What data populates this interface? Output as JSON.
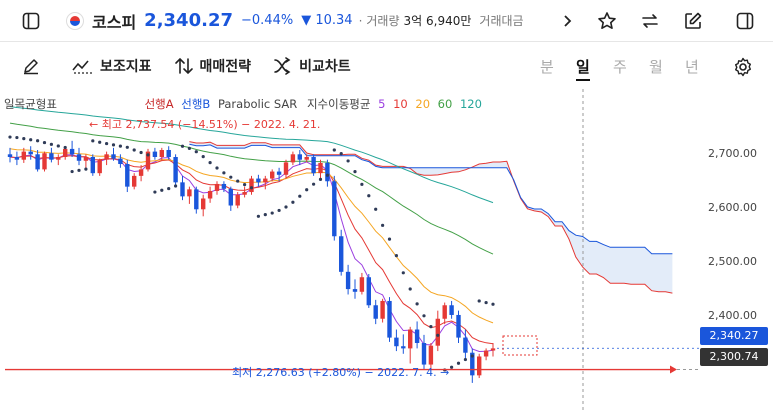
{
  "header": {
    "name": "코스피",
    "price": "2,340.27",
    "change_pct": "−0.44%",
    "change_abs": "▼ 10.34",
    "dot": "·",
    "volume_label": "거래량",
    "volume_value": "3억 6,940만",
    "amount_label": "거래대금"
  },
  "toolbar": {
    "indicators_label": "보조지표",
    "strategy_label": "매매전략",
    "compare_label": "비교차트",
    "periods": [
      "분",
      "일",
      "주",
      "월",
      "년"
    ],
    "active_period": "일"
  },
  "legend": {
    "ichimoku": "일목균형표",
    "span_a": "선행A",
    "span_b": "선행B",
    "psar": "Parabolic SAR",
    "ema": "지수이동평균",
    "ema_periods": [
      "5",
      "10",
      "20",
      "60",
      "120"
    ],
    "ema_colors": [
      "#9b3fe0",
      "#e53935",
      "#f5a623",
      "#43a047",
      "#26a69a"
    ]
  },
  "annotations": {
    "high": "← 최고 2,737.54 (−14.51%) − 2022. 4. 21.",
    "low": "최저 2,276.63 (+2.80%) − 2022. 7. 4. →"
  },
  "price_tags": {
    "current": "2,340.27",
    "line": "2,300.74"
  },
  "colors": {
    "up": "#e53935",
    "down": "#1a56db",
    "cloud_fill": "#dce7f7"
  },
  "chart_data": {
    "type": "candlestick",
    "y_ticks": [
      "2,700.00",
      "2,600.00",
      "2,500.00",
      "2,400.00"
    ],
    "y_tick_values": [
      2700,
      2600,
      2500,
      2400
    ],
    "ylim": [
      2235,
      2810
    ],
    "candles": [
      [
        2700,
        2712,
        2685,
        2695
      ],
      [
        2695,
        2705,
        2680,
        2690
      ],
      [
        2690,
        2712,
        2684,
        2705
      ],
      [
        2705,
        2715,
        2690,
        2700
      ],
      [
        2700,
        2708,
        2668,
        2672
      ],
      [
        2672,
        2705,
        2668,
        2702
      ],
      [
        2702,
        2712,
        2685,
        2690
      ],
      [
        2690,
        2700,
        2680,
        2695
      ],
      [
        2695,
        2715,
        2690,
        2710
      ],
      [
        2710,
        2725,
        2695,
        2700
      ],
      [
        2700,
        2712,
        2680,
        2688
      ],
      [
        2688,
        2700,
        2670,
        2695
      ],
      [
        2695,
        2700,
        2660,
        2665
      ],
      [
        2665,
        2692,
        2660,
        2690
      ],
      [
        2690,
        2705,
        2680,
        2700
      ],
      [
        2700,
        2712,
        2688,
        2692
      ],
      [
        2692,
        2700,
        2675,
        2682
      ],
      [
        2682,
        2690,
        2630,
        2640
      ],
      [
        2640,
        2665,
        2635,
        2660
      ],
      [
        2660,
        2680,
        2650,
        2672
      ],
      [
        2672,
        2710,
        2668,
        2705
      ],
      [
        2705,
        2712,
        2690,
        2695
      ],
      [
        2695,
        2712,
        2688,
        2708
      ],
      [
        2708,
        2715,
        2690,
        2695
      ],
      [
        2695,
        2700,
        2640,
        2648
      ],
      [
        2648,
        2660,
        2615,
        2622
      ],
      [
        2622,
        2640,
        2608,
        2635
      ],
      [
        2635,
        2640,
        2590,
        2598
      ],
      [
        2598,
        2625,
        2585,
        2618
      ],
      [
        2618,
        2640,
        2610,
        2632
      ],
      [
        2632,
        2650,
        2625,
        2645
      ],
      [
        2645,
        2650,
        2630,
        2636
      ],
      [
        2636,
        2640,
        2595,
        2605
      ],
      [
        2605,
        2630,
        2600,
        2625
      ],
      [
        2625,
        2640,
        2620,
        2630
      ],
      [
        2630,
        2660,
        2625,
        2655
      ],
      [
        2655,
        2662,
        2640,
        2648
      ],
      [
        2648,
        2660,
        2635,
        2655
      ],
      [
        2655,
        2672,
        2650,
        2668
      ],
      [
        2668,
        2675,
        2650,
        2662
      ],
      [
        2662,
        2690,
        2655,
        2685
      ],
      [
        2685,
        2705,
        2680,
        2700
      ],
      [
        2700,
        2708,
        2680,
        2690
      ],
      [
        2690,
        2700,
        2685,
        2695
      ],
      [
        2695,
        2700,
        2660,
        2665
      ],
      [
        2665,
        2690,
        2655,
        2684
      ],
      [
        2684,
        2690,
        2640,
        2650
      ],
      [
        2650,
        2660,
        2540,
        2548
      ],
      [
        2548,
        2560,
        2475,
        2482
      ],
      [
        2482,
        2495,
        2440,
        2450
      ],
      [
        2450,
        2468,
        2432,
        2445
      ],
      [
        2445,
        2480,
        2440,
        2472
      ],
      [
        2472,
        2478,
        2415,
        2420
      ],
      [
        2420,
        2430,
        2385,
        2395
      ],
      [
        2395,
        2432,
        2388,
        2428
      ],
      [
        2428,
        2435,
        2352,
        2360
      ],
      [
        2360,
        2375,
        2335,
        2344
      ],
      [
        2344,
        2366,
        2330,
        2340
      ],
      [
        2340,
        2380,
        2312,
        2375
      ],
      [
        2375,
        2390,
        2340,
        2350
      ],
      [
        2350,
        2365,
        2300,
        2310
      ],
      [
        2310,
        2350,
        2300,
        2345
      ],
      [
        2345,
        2410,
        2335,
        2395
      ],
      [
        2395,
        2425,
        2385,
        2420
      ],
      [
        2420,
        2428,
        2395,
        2402
      ],
      [
        2402,
        2410,
        2350,
        2360
      ],
      [
        2360,
        2375,
        2320,
        2332
      ],
      [
        2332,
        2340,
        2276,
        2290
      ],
      [
        2290,
        2330,
        2285,
        2325
      ],
      [
        2325,
        2340,
        2318,
        2336
      ],
      [
        2336,
        2350,
        2325,
        2340
      ]
    ]
  }
}
